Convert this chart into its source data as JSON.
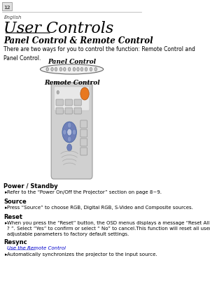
{
  "page_num": "12",
  "lang": "English",
  "title": "User Controls",
  "subtitle": "Panel Control & Remote Control",
  "intro": "There are two ways for you to control the function: Remote Control and\nPanel Control.",
  "panel_label": "Panel Control",
  "remote_label": "Remote Control",
  "sections": [
    {
      "heading": "Power / Standby",
      "bullet": "Refer to the “Power On/Off the Projector” section on page 8~9.",
      "sublink": null,
      "n_bullet_lines": 1
    },
    {
      "heading": "Source",
      "bullet": "Press “Source” to choose RGB, Digital RGB, S-Video and Composite sources.",
      "sublink": null,
      "n_bullet_lines": 1
    },
    {
      "heading": "Reset",
      "bullet": "When you press the “Reset” button, the OSD menus displays a message “Reset All Yes/NO\n? ”. Select “Yes” to confirm or select “ No” to cancel.This function will reset all user\nadjustable parameters to factory default settings.",
      "sublink": null,
      "n_bullet_lines": 3
    },
    {
      "heading": "Resync",
      "bullet": "Automatically synchronizes the projector to the input source.",
      "sublink": "Use the Remote Control",
      "n_bullet_lines": 1
    }
  ],
  "bg_color": "#ffffff",
  "text_color": "#000000",
  "remote_body_color": "#d0d0d0",
  "remote_button_orange": "#e87820",
  "remote_button_blue": "#7090c8"
}
